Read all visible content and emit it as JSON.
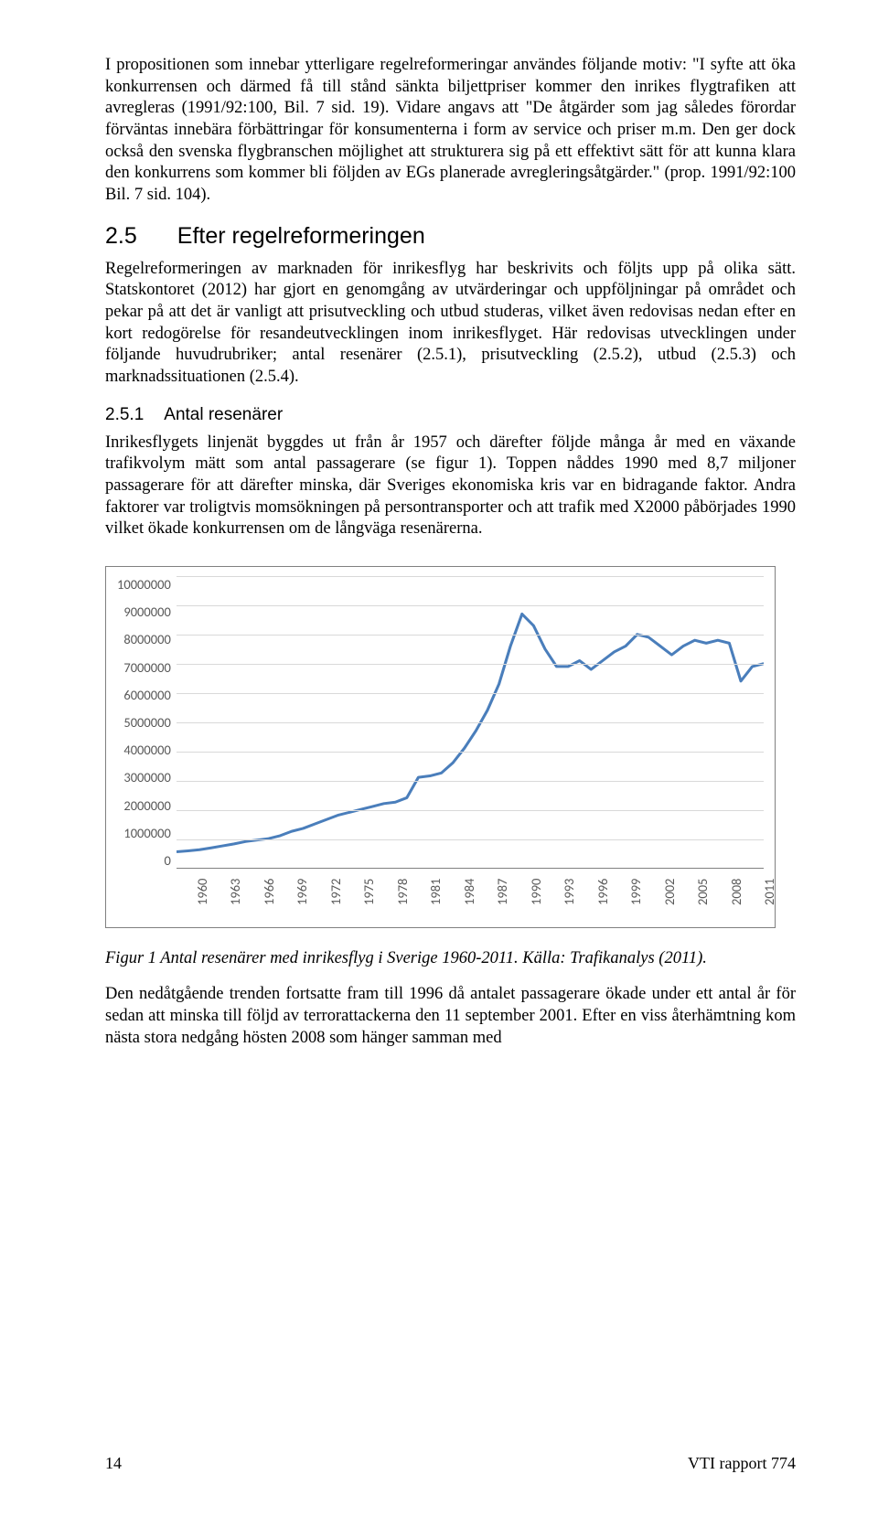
{
  "para1": "I propositionen som innebar ytterligare regelreformeringar användes följande motiv: \"I syfte att öka konkurrensen och därmed få till stånd sänkta biljettpriser kommer den inrikes flygtrafiken att avregleras (1991/92:100, Bil. 7 sid. 19). Vidare angavs att \"De åtgärder som jag således förordar förväntas innebära förbättringar för konsumenterna i form av service och priser m.m. Den ger dock också den svenska flygbranschen möjlighet att strukturera sig på ett effektivt sätt för att kunna klara den konkurrens som kommer bli följden av EGs planerade avregleringsåtgärder.\" (prop. 1991/92:100 Bil. 7 sid. 104).",
  "h2": {
    "num": "2.5",
    "text": "Efter regelreformeringen"
  },
  "para2": "Regelreformeringen av marknaden för inrikesflyg har beskrivits och följts upp på olika sätt. Statskontoret (2012) har gjort en genomgång av utvärderingar och uppföljningar på området och pekar på att det är vanligt att prisutveckling och utbud studeras, vilket även redovisas nedan efter en kort redogörelse för resandeutvecklingen inom inrikesflyget. Här redovisas utvecklingen under följande huvudrubriker; antal resenärer (2.5.1), prisutveckling (2.5.2), utbud (2.5.3) och marknadssituationen (2.5.4).",
  "h3": {
    "num": "2.5.1",
    "text": "Antal resenärer"
  },
  "para3": "Inrikesflygets linjenät byggdes ut från år 1957 och därefter följde många år med en växande trafikvolym mätt som antal passagerare (se figur 1). Toppen nåddes 1990 med 8,7 miljoner passagerare för att därefter minska, där Sveriges ekonomiska kris var en bidragande faktor. Andra faktorer var troligtvis momsökningen på persontransporter och att trafik med X2000 påbörjades 1990 vilket ökade konkurrensen om de långväga resenärerna.",
  "chart": {
    "type": "line",
    "ylim": [
      0,
      10000000
    ],
    "ytick_step": 1000000,
    "yticks": [
      "10000000",
      "9000000",
      "8000000",
      "7000000",
      "6000000",
      "5000000",
      "4000000",
      "3000000",
      "2000000",
      "1000000",
      "0"
    ],
    "xticks": [
      "1960",
      "1963",
      "1966",
      "1969",
      "1972",
      "1975",
      "1978",
      "1981",
      "1984",
      "1987",
      "1990",
      "1993",
      "1996",
      "1999",
      "2002",
      "2005",
      "2008",
      "2011"
    ],
    "series_color": "#4a7ebb",
    "grid_color": "#d9d9d9",
    "line_width": 3,
    "years": [
      1960,
      1961,
      1962,
      1963,
      1964,
      1965,
      1966,
      1967,
      1968,
      1969,
      1970,
      1971,
      1972,
      1973,
      1974,
      1975,
      1976,
      1977,
      1978,
      1979,
      1980,
      1981,
      1982,
      1983,
      1984,
      1985,
      1986,
      1987,
      1988,
      1989,
      1990,
      1991,
      1992,
      1993,
      1994,
      1995,
      1996,
      1997,
      1998,
      1999,
      2000,
      2001,
      2002,
      2003,
      2004,
      2005,
      2006,
      2007,
      2008,
      2009,
      2010,
      2011
    ],
    "values": [
      550000,
      580000,
      620000,
      680000,
      750000,
      820000,
      900000,
      950000,
      1000000,
      1100000,
      1250000,
      1350000,
      1500000,
      1650000,
      1800000,
      1900000,
      2000000,
      2100000,
      2200000,
      2250000,
      2400000,
      3100000,
      3150000,
      3250000,
      3600000,
      4100000,
      4700000,
      5400000,
      6300000,
      7600000,
      8700000,
      8300000,
      7500000,
      6900000,
      6900000,
      7100000,
      6800000,
      7100000,
      7400000,
      7600000,
      8000000,
      7900000,
      7600000,
      7300000,
      7600000,
      7800000,
      7700000,
      7800000,
      7700000,
      6400000,
      6900000,
      7000000
    ]
  },
  "caption": "Figur 1 Antal resenärer med inrikesflyg i Sverige 1960-2011. Källa: Trafikanalys (2011).",
  "para4": "Den nedåtgående trenden fortsatte fram till 1996 då antalet passagerare ökade under ett antal år för sedan att minska till följd av terrorattackerna den 11 september 2001. Efter en viss återhämtning kom nästa stora nedgång hösten 2008 som hänger samman med",
  "footer": {
    "page": "14",
    "ref": "VTI rapport 774"
  }
}
